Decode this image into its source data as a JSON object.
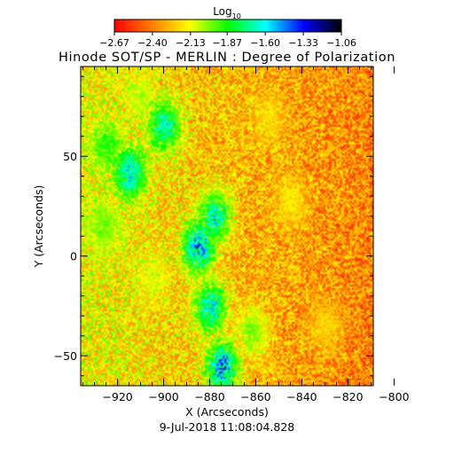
{
  "chart_data": {
    "type": "heatmap",
    "title": "Hinode SOT/SP - MERLIN : Degree of Polarization",
    "xlabel": "X (Arcseconds)",
    "ylabel": "Y (Arcseconds)",
    "xlim": [
      -936,
      -809
    ],
    "ylim": [
      -65,
      95
    ],
    "x_ticks": [
      -920,
      -900,
      -880,
      -860,
      -840,
      -820,
      -800
    ],
    "x_tick_labels": [
      "−920",
      "−900",
      "−880",
      "−860",
      "−840",
      "−820",
      "−800"
    ],
    "y_ticks": [
      -50,
      0,
      50
    ],
    "y_tick_labels": [
      "−50",
      "0",
      "50"
    ],
    "timestamp": "9-Jul-2018 11:08:04.828",
    "colorbar": {
      "label_base": "Log",
      "label_sub": "10",
      "range": [
        -2.67,
        -1.06
      ],
      "ticks": [
        -2.67,
        -2.4,
        -2.13,
        -1.87,
        -1.6,
        -1.33,
        -1.06
      ],
      "tick_labels": [
        "−2.67",
        "−2.40",
        "−2.13",
        "−1.87",
        "−1.60",
        "−1.33",
        "−1.06"
      ],
      "colors": [
        "#ff0000",
        "#ff8000",
        "#ffff00",
        "#00ff00",
        "#00ffff",
        "#0000ff",
        "#000000"
      ]
    },
    "features": [
      {
        "x": -915,
        "y": 42,
        "value": -1.55
      },
      {
        "x": -925,
        "y": 55,
        "value": -1.85
      },
      {
        "x": -926,
        "y": 15,
        "value": -1.95
      },
      {
        "x": -885,
        "y": 5,
        "value": -1.45
      },
      {
        "x": -878,
        "y": 20,
        "value": -1.6
      },
      {
        "x": -880,
        "y": -25,
        "value": -1.55
      },
      {
        "x": -875,
        "y": -55,
        "value": -1.4
      },
      {
        "x": -862,
        "y": -38,
        "value": -1.95
      },
      {
        "x": -905,
        "y": -10,
        "value": -2.1
      },
      {
        "x": -910,
        "y": 80,
        "value": -2.05
      },
      {
        "x": -900,
        "y": 65,
        "value": -1.6
      },
      {
        "x": -845,
        "y": 28,
        "value": -2.15
      },
      {
        "x": -830,
        "y": -35,
        "value": -2.2
      },
      {
        "x": -855,
        "y": 70,
        "value": -2.2
      }
    ]
  }
}
